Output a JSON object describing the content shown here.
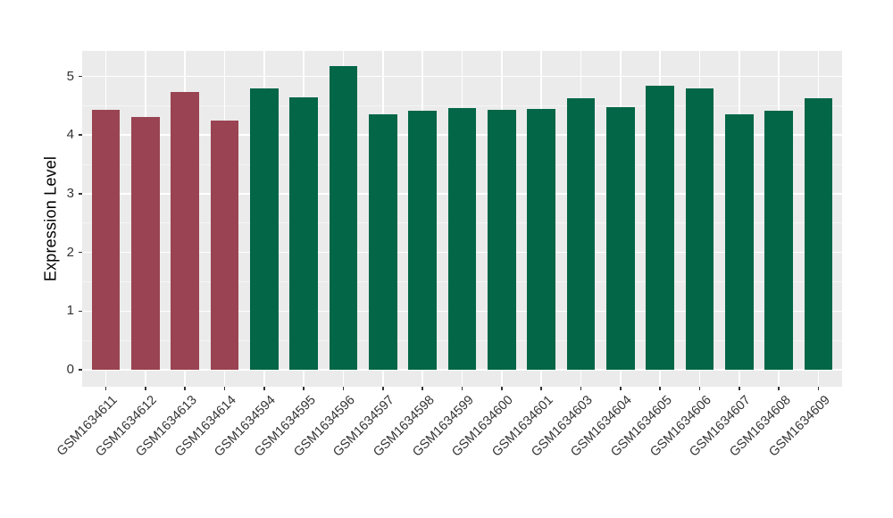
{
  "chart_data": {
    "type": "bar",
    "title": "",
    "ylabel": "Expression Level",
    "xlabel": "",
    "categories": [
      "GSM1634611",
      "GSM1634612",
      "GSM1634613",
      "GSM1634614",
      "GSM1634594",
      "GSM1634595",
      "GSM1634596",
      "GSM1634597",
      "GSM1634598",
      "GSM1634599",
      "GSM1634600",
      "GSM1634601",
      "GSM1634603",
      "GSM1634604",
      "GSM1634605",
      "GSM1634606",
      "GSM1634607",
      "GSM1634608",
      "GSM1634609"
    ],
    "values": [
      4.43,
      4.31,
      4.73,
      4.24,
      4.79,
      4.64,
      5.17,
      4.36,
      4.41,
      4.46,
      4.43,
      4.44,
      4.62,
      4.48,
      4.84,
      4.79,
      4.36,
      4.42,
      4.62
    ],
    "groups": [
      "group1",
      "group1",
      "group1",
      "group1",
      "group2",
      "group2",
      "group2",
      "group2",
      "group2",
      "group2",
      "group2",
      "group2",
      "group2",
      "group2",
      "group2",
      "group2",
      "group2",
      "group2",
      "group2"
    ],
    "group_colors": {
      "group1": "#9A4352",
      "group2": "#026647"
    },
    "yticks": [
      0,
      1,
      2,
      3,
      4,
      5
    ],
    "ylim": [
      0,
      5.43
    ],
    "grid": true,
    "legend_position": "none",
    "x_label_rotation_deg": 45
  },
  "style": {
    "panel_bg": "#EBEBEB",
    "grid_major": "#FFFFFF",
    "grid_minor": "#F5F5F5",
    "tick_mark_color": "#333333",
    "axis_text_color": "#333333",
    "axis_title_color": "#000000",
    "figure_bg": "#FFFFFF"
  }
}
